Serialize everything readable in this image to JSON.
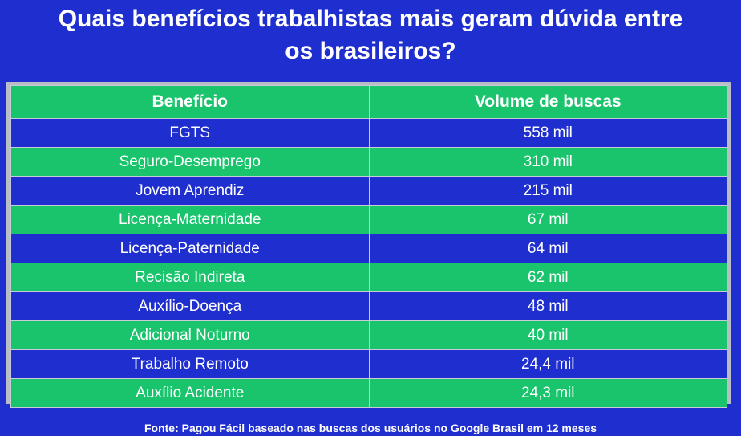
{
  "title_line1": "Quais benefícios trabalhistas mais geram dúvida entre",
  "title_line2": "os brasileiros?",
  "colors": {
    "background": "#1f2fcf",
    "green": "#19c46c",
    "frame": "#b9bdc8"
  },
  "chart_data": {
    "type": "table",
    "columns": [
      "Benefício",
      "Volume de buscas"
    ],
    "rows": [
      [
        "FGTS",
        "558 mil"
      ],
      [
        "Seguro-Desemprego",
        "310 mil"
      ],
      [
        "Jovem Aprendiz",
        "215 mil"
      ],
      [
        "Licença-Maternidade",
        "67 mil"
      ],
      [
        "Licença-Paternidade",
        "64 mil"
      ],
      [
        "Recisão Indireta",
        "62 mil"
      ],
      [
        "Auxílio-Doença",
        "48 mil"
      ],
      [
        "Adicional Noturno",
        "40 mil"
      ],
      [
        "Trabalho Remoto",
        "24,4 mil"
      ],
      [
        "Auxílio Acidente",
        "24,3 mil"
      ]
    ]
  },
  "source": "Fonte: Pagou Fácil baseado nas buscas dos usuários no Google Brasil em 12 meses"
}
